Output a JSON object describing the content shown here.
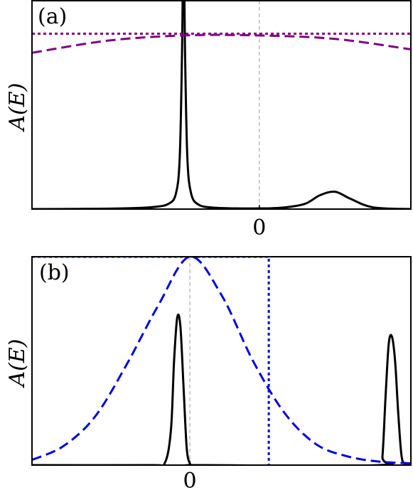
{
  "chart_data": [
    {
      "type": "line",
      "panel_label": "(a)",
      "ylabel": "A(E)",
      "xlim": [
        -3.0,
        2.0
      ],
      "ylim": [
        0,
        1.2
      ],
      "x_ticks": [
        {
          "value": 0,
          "label": "0"
        }
      ],
      "zero_reference_line": true,
      "series": [
        {
          "style": "solid",
          "color": "#000000",
          "x": [
            -3.0,
            -2.4,
            -1.8,
            -1.4,
            -1.2,
            -1.1,
            -1.05,
            -1.02,
            -1.0,
            -0.98,
            -0.95,
            -0.9,
            -0.8,
            -0.6,
            -0.3,
            0.0,
            0.3,
            0.6,
            0.8,
            1.0,
            1.2,
            1.5,
            2.0
          ],
          "y": [
            0.0,
            0.001,
            0.004,
            0.012,
            0.03,
            0.09,
            0.3,
            0.9,
            1.6,
            0.9,
            0.3,
            0.09,
            0.025,
            0.008,
            0.004,
            0.004,
            0.008,
            0.03,
            0.08,
            0.1,
            0.06,
            0.01,
            0.0
          ]
        },
        {
          "style": "dashed",
          "color": "#800080",
          "x": [
            -3.0,
            -2.0,
            -1.0,
            0.0,
            1.0,
            2.0
          ],
          "y": [
            0.9,
            0.97,
            1.0,
            1.0,
            0.98,
            0.92
          ]
        },
        {
          "style": "dotted",
          "color": "#800080",
          "x": [
            -3.0,
            2.0
          ],
          "y": [
            1.01,
            1.01
          ]
        }
      ]
    },
    {
      "type": "line",
      "panel_label": "(b)",
      "ylabel": "A(E)",
      "xlim": [
        -2.5,
        3.5
      ],
      "ylim": [
        0,
        1.2
      ],
      "x_ticks": [
        {
          "value": 0,
          "label": "0"
        }
      ],
      "zero_reference_line": true,
      "series": [
        {
          "style": "solid",
          "color": "#000000",
          "x": [
            -2.5,
            -0.6,
            -0.4,
            -0.3,
            -0.25,
            -0.2,
            -0.15,
            -0.1,
            -0.05,
            0.0,
            0.05,
            0.2,
            3.0,
            3.05,
            3.1,
            3.15,
            3.2,
            3.25,
            3.3,
            3.35,
            3.4,
            3.5
          ],
          "y": [
            0.0,
            0.0,
            0.01,
            0.2,
            0.6,
            0.85,
            0.8,
            0.45,
            0.1,
            0.01,
            0.0,
            0.0,
            0.0,
            0.05,
            0.4,
            0.7,
            0.74,
            0.6,
            0.3,
            0.06,
            0.01,
            0.0
          ]
        },
        {
          "style": "dashed",
          "color": "#0000dd",
          "x": [
            -2.5,
            -2.0,
            -1.5,
            -1.0,
            -0.5,
            0.0,
            0.5,
            1.0,
            1.5,
            2.0,
            2.5,
            3.0,
            3.5
          ],
          "y": [
            0.03,
            0.11,
            0.28,
            0.58,
            0.92,
            1.2,
            0.98,
            0.6,
            0.3,
            0.12,
            0.05,
            0.02,
            0.01
          ]
        },
        {
          "style": "dotted",
          "color": "#0000dd",
          "x": [
            -2.5,
            1.25,
            1.25
          ],
          "y": [
            1.2,
            1.2,
            0.0
          ]
        }
      ]
    }
  ]
}
